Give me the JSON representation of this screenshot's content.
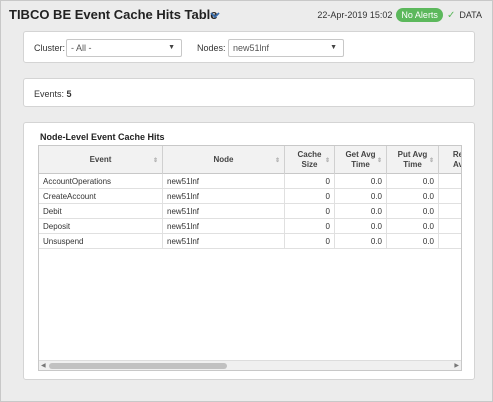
{
  "header": {
    "title": "TIBCO BE Event Cache Hits Table",
    "timestamp": "22-Apr-2019 15:02",
    "alerts_badge": "No Alerts",
    "data_label": "DATA",
    "badge_color": "#5cb85c"
  },
  "filters": {
    "cluster_label": "Cluster:",
    "cluster_value": "- All -",
    "nodes_label": "Nodes:",
    "nodes_value": "new51lnf"
  },
  "events": {
    "label": "Events:",
    "count": "5"
  },
  "table": {
    "title": "Node-Level Event Cache Hits",
    "columns": {
      "event": "Event",
      "node": "Node",
      "cache_size": "Cache Size",
      "get_avg": "Get Avg Time",
      "put_avg": "Put Avg Time",
      "re_avg": "Re Av"
    },
    "rows": [
      {
        "event": "AccountOperations",
        "node": "new51lnf",
        "cache_size": "0",
        "get_avg": "0.0",
        "put_avg": "0.0"
      },
      {
        "event": "CreateAccount",
        "node": "new51lnf",
        "cache_size": "0",
        "get_avg": "0.0",
        "put_avg": "0.0"
      },
      {
        "event": "Debit",
        "node": "new51lnf",
        "cache_size": "0",
        "get_avg": "0.0",
        "put_avg": "0.0"
      },
      {
        "event": "Deposit",
        "node": "new51lnf",
        "cache_size": "0",
        "get_avg": "0.0",
        "put_avg": "0.0"
      },
      {
        "event": "Unsuspend",
        "node": "new51lnf",
        "cache_size": "0",
        "get_avg": "0.0",
        "put_avg": "0.0"
      }
    ]
  }
}
